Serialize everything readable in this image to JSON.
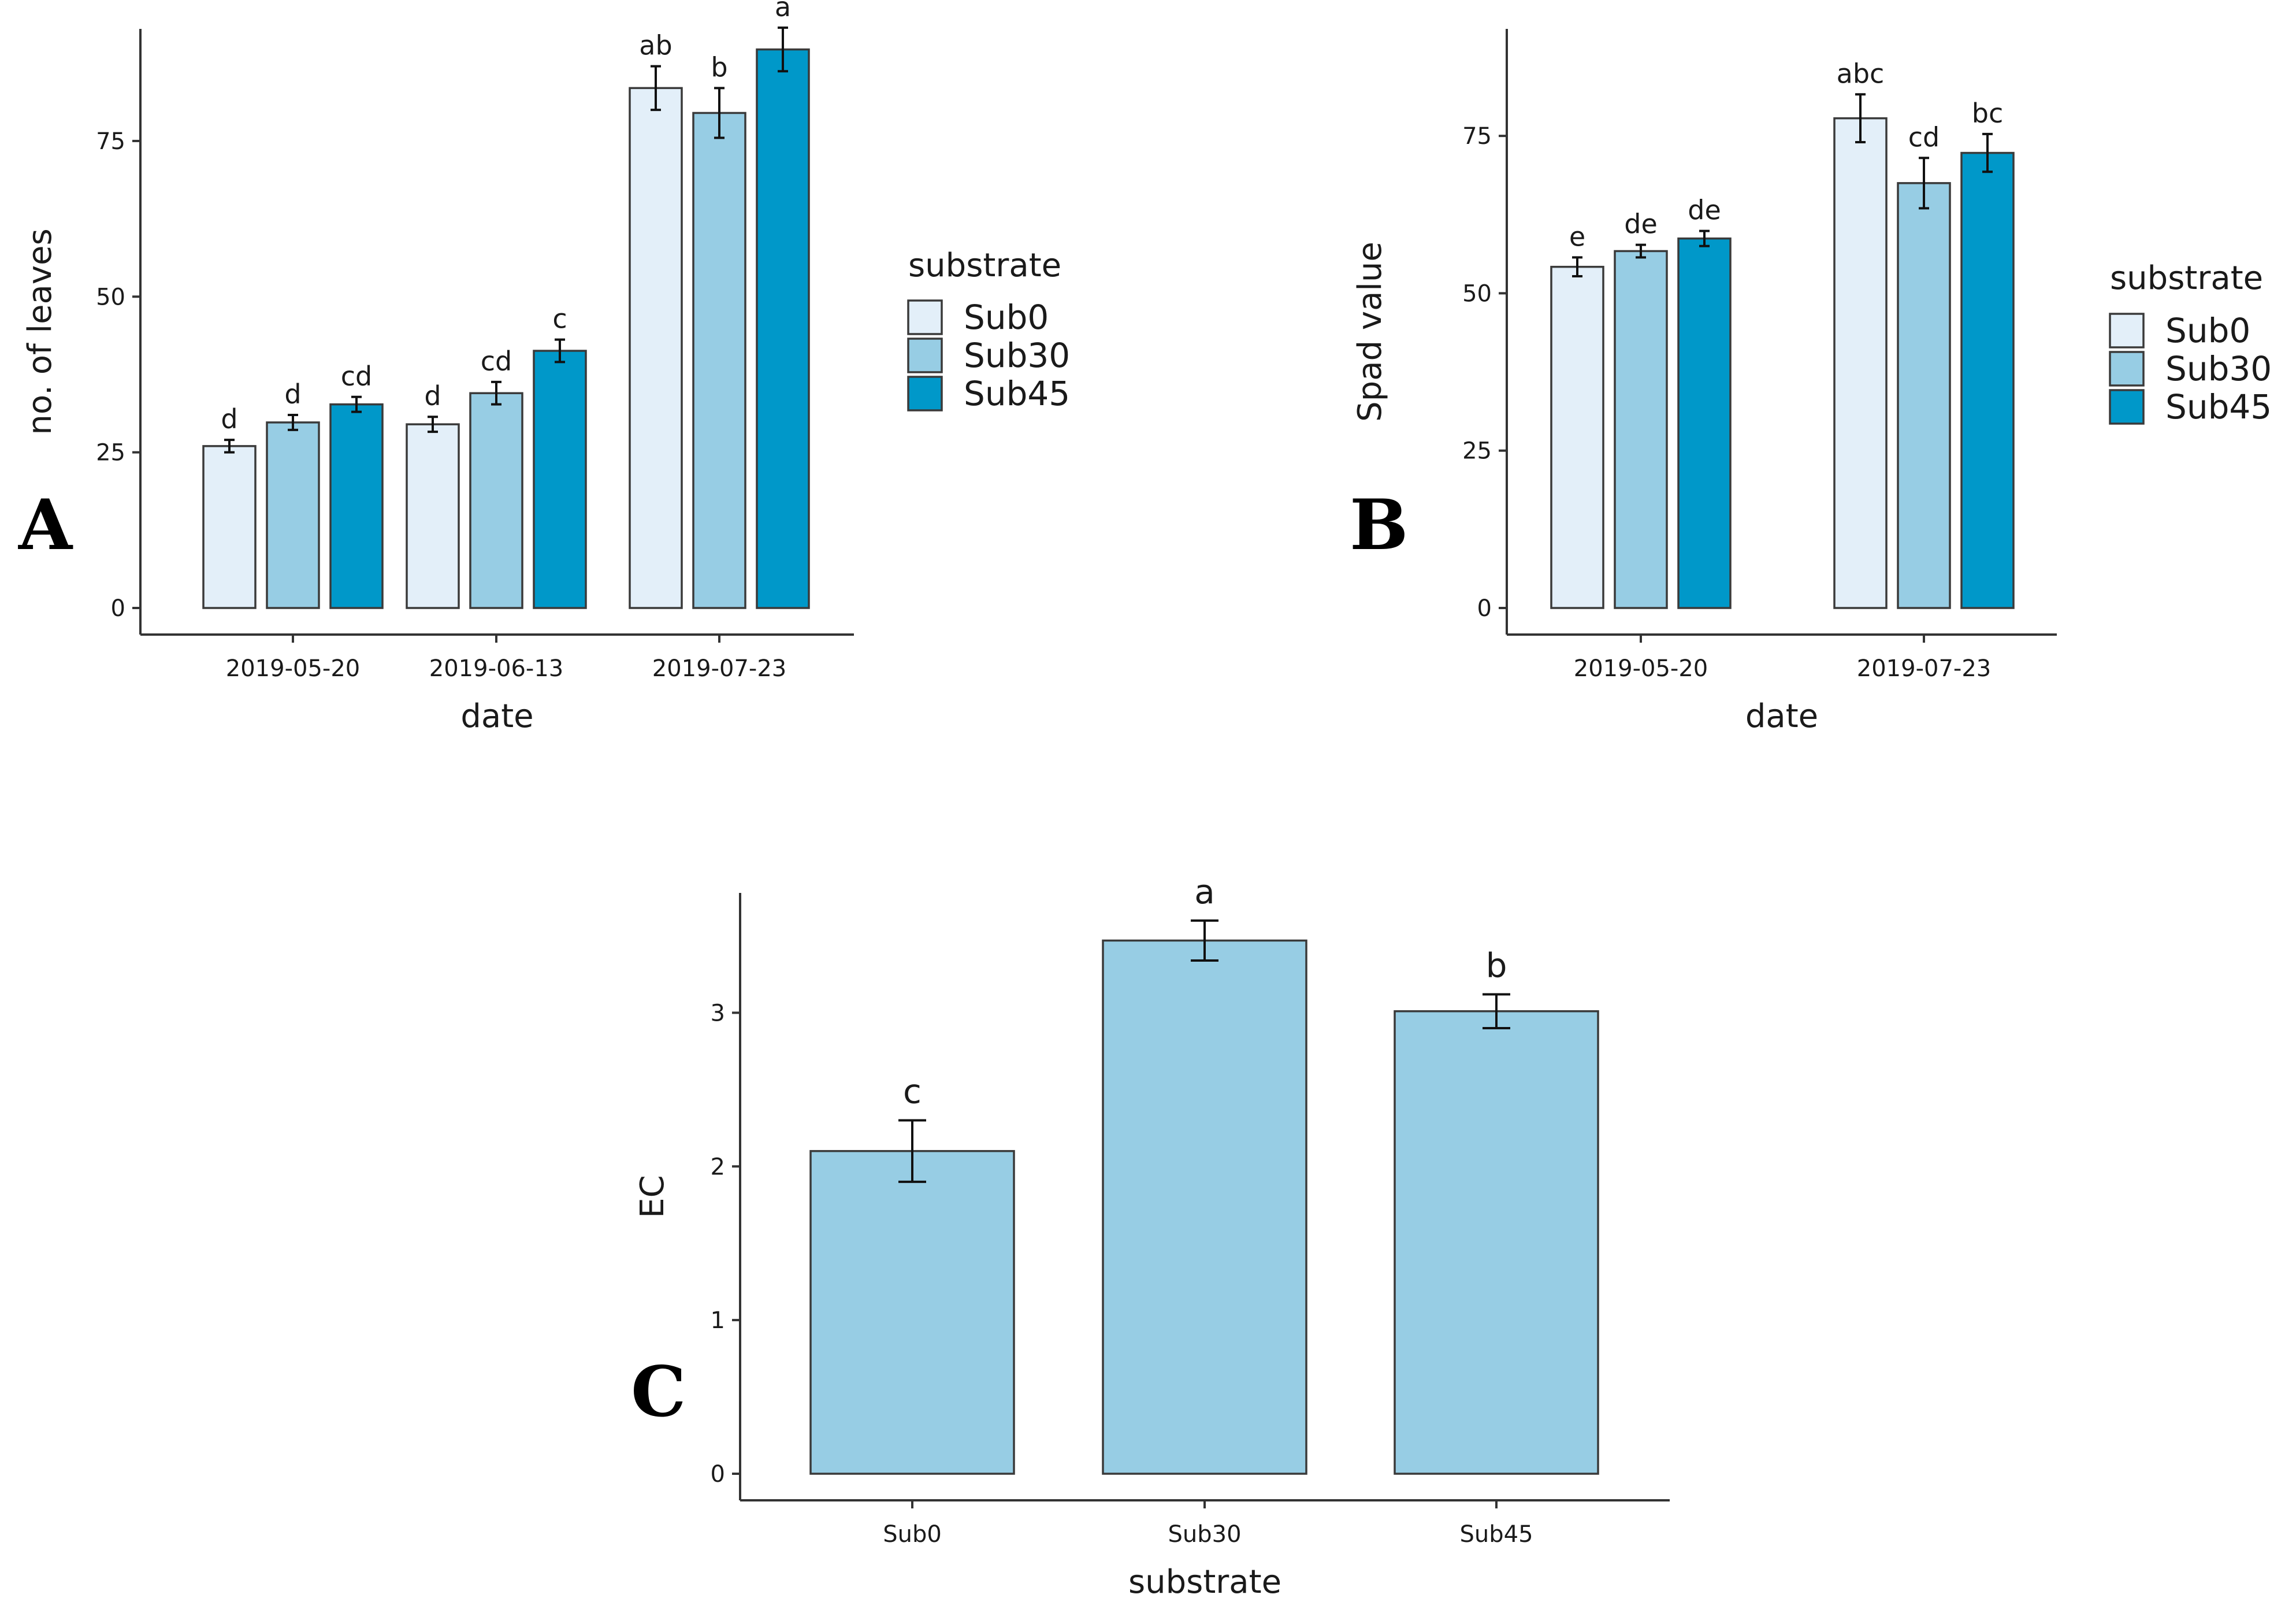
{
  "colors": {
    "Sub0": "#e3eff9",
    "Sub30": "#97cde4",
    "Sub45": "#0098c9"
  },
  "chart_data": [
    {
      "panel": "A",
      "type": "bar",
      "xlabel": "date",
      "ylabel": "no. of leaves",
      "ylim": [
        0,
        93
      ],
      "yticks": [
        0,
        25,
        50,
        75
      ],
      "categories": [
        "2019-05-20",
        "2019-06-13",
        "2019-07-23"
      ],
      "legend": {
        "title": "substrate",
        "position": "right"
      },
      "series": [
        {
          "name": "Sub0",
          "values": [
            26,
            29.5,
            83.5
          ],
          "errors": [
            1.0,
            1.2,
            3.5
          ],
          "labels": [
            "d",
            "d",
            "ab"
          ]
        },
        {
          "name": "Sub30",
          "values": [
            29.8,
            34.5,
            79.5
          ],
          "errors": [
            1.2,
            1.8,
            4.0
          ],
          "labels": [
            "d",
            "cd",
            "b"
          ]
        },
        {
          "name": "Sub45",
          "values": [
            32.7,
            41.3,
            89.7
          ],
          "errors": [
            1.2,
            1.8,
            3.5
          ],
          "labels": [
            "cd",
            "c",
            "a"
          ]
        }
      ]
    },
    {
      "panel": "B",
      "type": "bar",
      "xlabel": "date",
      "ylabel": "Spad value",
      "ylim": [
        0,
        92
      ],
      "yticks": [
        0,
        25,
        50,
        75
      ],
      "categories": [
        "2019-05-20",
        "2019-07-23"
      ],
      "legend": {
        "title": "substrate",
        "position": "right"
      },
      "series": [
        {
          "name": "Sub0",
          "values": [
            54.2,
            77.8
          ],
          "errors": [
            1.5,
            3.8
          ],
          "labels": [
            "e",
            "abc"
          ]
        },
        {
          "name": "Sub30",
          "values": [
            56.7,
            67.5
          ],
          "errors": [
            1.0,
            4.0
          ],
          "labels": [
            "de",
            "cd"
          ]
        },
        {
          "name": "Sub45",
          "values": [
            58.7,
            72.3
          ],
          "errors": [
            1.2,
            3.0
          ],
          "labels": [
            "de",
            "bc"
          ]
        }
      ]
    },
    {
      "panel": "C",
      "type": "bar",
      "xlabel": "substrate",
      "ylabel": "EC",
      "ylim": [
        0,
        3.78
      ],
      "yticks": [
        0,
        1,
        2,
        3
      ],
      "categories": [
        "Sub0",
        "Sub30",
        "Sub45"
      ],
      "bar_color": "#97cde4",
      "values": [
        2.1,
        3.47,
        3.01
      ],
      "errors": [
        0.2,
        0.13,
        0.11
      ],
      "labels": [
        "c",
        "a",
        "b"
      ]
    }
  ]
}
